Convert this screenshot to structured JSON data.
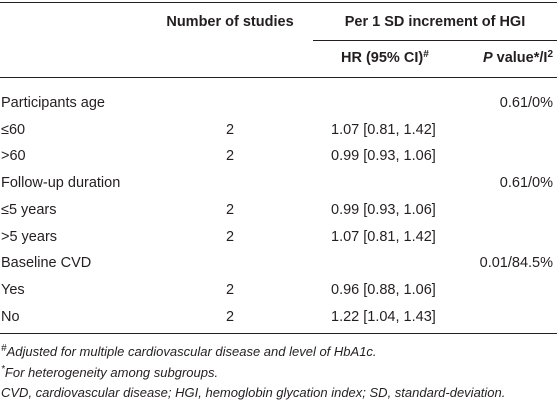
{
  "header": {
    "studies": "Number of studies",
    "group": "Per 1 SD increment of HGI",
    "hr": {
      "text": "HR (95% CI)",
      "sup": "#"
    },
    "p": {
      "italic": "P",
      "text": " value*/I",
      "sup": "2"
    }
  },
  "table": {
    "rows": [
      {
        "label": "Participants age",
        "p": "0.61/0%"
      },
      {
        "label": "≤60",
        "n": "2",
        "hr": "1.07 [0.81, 1.42]"
      },
      {
        "label": ">60",
        "n": "2",
        "hr": "0.99 [0.93, 1.06]"
      },
      {
        "label": "Follow-up duration",
        "p": "0.61/0%"
      },
      {
        "label": "≤5 years",
        "n": "2",
        "hr": "0.99 [0.93, 1.06]"
      },
      {
        "label": ">5 years",
        "n": "2",
        "hr": "1.07 [0.81, 1.42]"
      },
      {
        "label": "Baseline CVD",
        "p": "0.01/84.5%"
      },
      {
        "label": "Yes",
        "n": "2",
        "hr": "0.96 [0.88, 1.06]"
      },
      {
        "label": "No",
        "n": "2",
        "hr": "1.22 [1.04, 1.43]"
      }
    ]
  },
  "footnotes": [
    {
      "sup": "#",
      "text": "Adjusted for multiple cardiovascular disease and level of HbA1c."
    },
    {
      "sup": "*",
      "text": "For heterogeneity among subgroups."
    },
    {
      "text": "CVD, cardiovascular disease; HGI, hemoglobin glycation index; SD, standard-deviation."
    }
  ]
}
